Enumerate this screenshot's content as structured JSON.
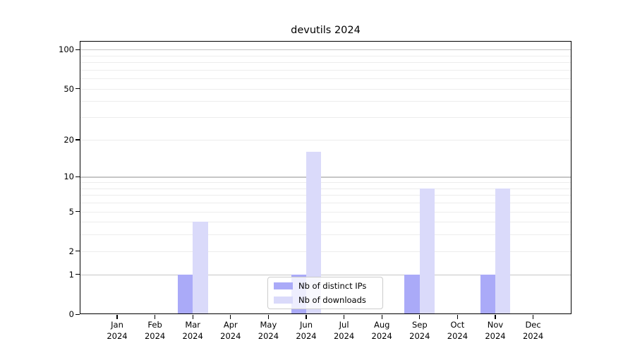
{
  "chart_data": {
    "type": "bar",
    "title": "devutils 2024",
    "categories": [
      {
        "month": "Jan",
        "year": "2024"
      },
      {
        "month": "Feb",
        "year": "2024"
      },
      {
        "month": "Mar",
        "year": "2024"
      },
      {
        "month": "Apr",
        "year": "2024"
      },
      {
        "month": "May",
        "year": "2024"
      },
      {
        "month": "Jun",
        "year": "2024"
      },
      {
        "month": "Jul",
        "year": "2024"
      },
      {
        "month": "Aug",
        "year": "2024"
      },
      {
        "month": "Sep",
        "year": "2024"
      },
      {
        "month": "Oct",
        "year": "2024"
      },
      {
        "month": "Nov",
        "year": "2024"
      },
      {
        "month": "Dec",
        "year": "2024"
      }
    ],
    "series": [
      {
        "name": "Nb of distinct IPs",
        "color": "#aaaaf8",
        "values": [
          0,
          0,
          1,
          0,
          0,
          1,
          0,
          0,
          1,
          0,
          1,
          0
        ]
      },
      {
        "name": "Nb of downloads",
        "color": "#dadafa",
        "values": [
          0,
          0,
          4,
          0,
          0,
          16,
          0,
          0,
          8,
          0,
          8,
          0
        ]
      }
    ],
    "xlabel": "",
    "ylabel": "",
    "yscale": "log1p",
    "ylim": [
      0,
      116
    ],
    "yticks_labeled": [
      0,
      1,
      2,
      5,
      10,
      20,
      50,
      100
    ],
    "yticks_minor": [
      3,
      4,
      6,
      7,
      8,
      9,
      30,
      40,
      60,
      70,
      80,
      90
    ],
    "major_grid_values": [
      1,
      10,
      100
    ],
    "grid": "on",
    "legend_position": "lower center",
    "colors": {
      "major_grid": "#c6c6c6",
      "minor_grid": "#ededed",
      "axis": "#000000",
      "legend_border": "#cccccc",
      "background": "#ffffff"
    }
  }
}
